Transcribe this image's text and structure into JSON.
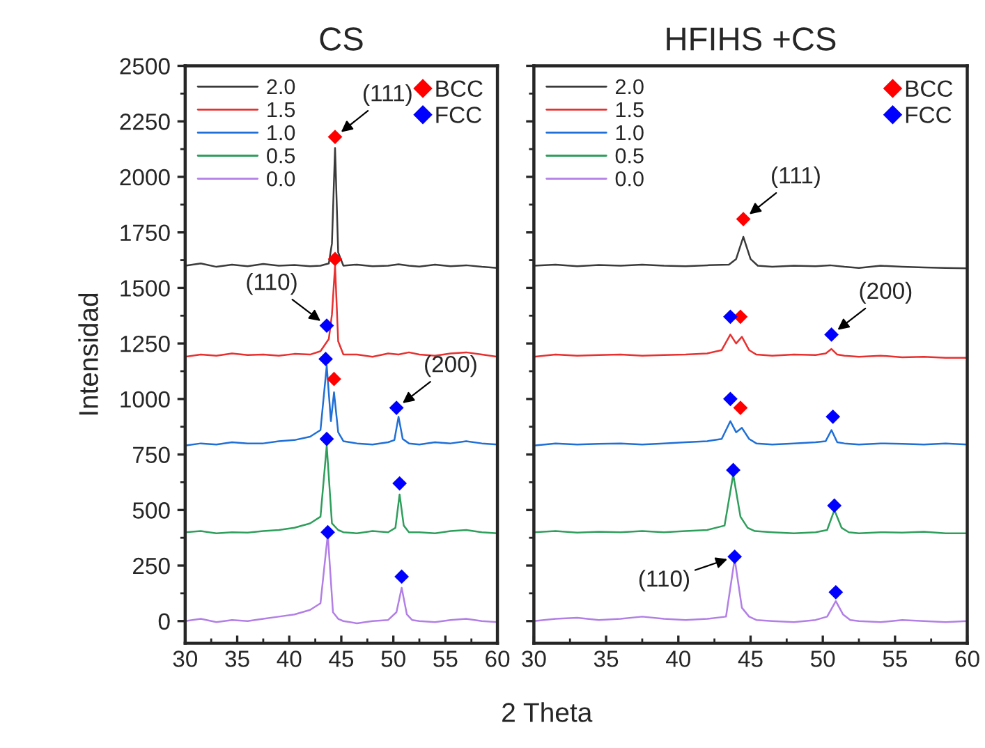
{
  "chart_data": [
    {
      "type": "line",
      "title": "CS",
      "xlabel": "2 Theta",
      "ylabel": "Intensidad",
      "xlim": [
        30,
        60
      ],
      "xticks": [
        30,
        35,
        40,
        45,
        50,
        55,
        60
      ],
      "ylim": [
        -100,
        2500
      ],
      "yticks": [
        0,
        250,
        500,
        750,
        1000,
        1250,
        1500,
        1750,
        2000,
        2250,
        2500
      ],
      "legend": "top left",
      "grid": false,
      "series": [
        {
          "name": "2.0",
          "color": "#3a3a3a",
          "x": [
            30,
            31.5,
            33,
            34.5,
            36,
            37.5,
            39,
            40.5,
            42,
            43.0,
            43.8,
            44.1,
            44.4,
            44.7,
            45.2,
            46.5,
            48,
            49.5,
            50.5,
            51.5,
            52.5,
            54,
            55.5,
            57,
            58.5,
            60
          ],
          "values": [
            1600,
            1610,
            1595,
            1605,
            1598,
            1608,
            1600,
            1603,
            1598,
            1600,
            1610,
            1700,
            2130,
            1660,
            1600,
            1605,
            1598,
            1600,
            1606,
            1600,
            1596,
            1605,
            1598,
            1602,
            1595,
            1590
          ]
        },
        {
          "name": "1.5",
          "color": "#e8302f",
          "x": [
            30,
            31.5,
            33,
            34.5,
            36,
            37.5,
            39,
            40.5,
            42,
            43.0,
            43.8,
            44.1,
            44.4,
            44.7,
            45.2,
            46.5,
            48,
            49.5,
            50.5,
            51.5,
            52.5,
            54,
            55.5,
            57,
            58.5,
            60
          ],
          "values": [
            1190,
            1200,
            1195,
            1205,
            1198,
            1200,
            1195,
            1203,
            1200,
            1215,
            1270,
            1380,
            1600,
            1260,
            1200,
            1200,
            1190,
            1205,
            1200,
            1210,
            1200,
            1195,
            1205,
            1210,
            1200,
            1190
          ]
        },
        {
          "name": "1.0",
          "color": "#1f6fd6",
          "x": [
            30,
            31.5,
            33,
            34.5,
            36,
            37.5,
            39,
            40.5,
            42,
            43.0,
            43.6,
            44.0,
            44.3,
            44.7,
            45.2,
            46.5,
            48,
            49.5,
            50.1,
            50.5,
            50.9,
            51.5,
            52.5,
            54,
            55.5,
            57,
            58.5,
            60
          ],
          "values": [
            790,
            800,
            795,
            805,
            800,
            800,
            810,
            815,
            830,
            860,
            1150,
            900,
            1030,
            850,
            810,
            800,
            795,
            805,
            815,
            920,
            820,
            800,
            795,
            805,
            800,
            810,
            800,
            795
          ]
        },
        {
          "name": "0.5",
          "color": "#2e9e5b",
          "x": [
            30,
            31.5,
            33,
            34.5,
            36,
            37.5,
            39,
            40.5,
            42,
            43.0,
            43.6,
            44.1,
            44.7,
            45.2,
            46.5,
            48,
            49.5,
            50.2,
            50.6,
            51.0,
            51.5,
            52.5,
            54,
            55.5,
            57,
            58.5,
            60
          ],
          "values": [
            400,
            405,
            395,
            400,
            398,
            405,
            410,
            420,
            440,
            470,
            790,
            440,
            410,
            400,
            395,
            405,
            400,
            420,
            570,
            430,
            400,
            400,
            395,
            405,
            410,
            400,
            395
          ]
        },
        {
          "name": "0.0",
          "color": "#b27fe6",
          "x": [
            30,
            31.5,
            33,
            34.5,
            36,
            37.5,
            39,
            40.5,
            42,
            43.0,
            43.7,
            44.2,
            44.7,
            45.2,
            46.5,
            48,
            49.5,
            50.3,
            50.8,
            51.3,
            51.8,
            52.5,
            54,
            55.5,
            57,
            58.5,
            60
          ],
          "values": [
            0,
            10,
            -5,
            5,
            0,
            10,
            20,
            30,
            50,
            80,
            390,
            40,
            10,
            0,
            -10,
            0,
            5,
            40,
            150,
            30,
            5,
            0,
            -5,
            5,
            10,
            0,
            -5
          ]
        },
        {
          "name": "BCC",
          "type": "scatter",
          "marker": "diamond",
          "color": "#ff0000",
          "x": [
            44.4,
            44.4,
            44.3
          ],
          "values": [
            2180,
            1630,
            1090
          ]
        },
        {
          "name": "FCC",
          "type": "scatter",
          "marker": "diamond",
          "color": "#0000ff",
          "x": [
            43.6,
            43.5,
            50.3,
            43.6,
            50.6,
            43.7,
            50.8
          ],
          "values": [
            1330,
            1180,
            960,
            820,
            620,
            400,
            200
          ]
        }
      ],
      "annotations": [
        {
          "text": "(111)",
          "x": 44.4,
          "y": 2180
        },
        {
          "text": "(110)",
          "x": 43.6,
          "y": 1330
        },
        {
          "text": "(200)",
          "x": 50.3,
          "y": 960
        }
      ]
    },
    {
      "type": "line",
      "title": "HFIHS +CS",
      "xlim": [
        30,
        60
      ],
      "xticks": [
        30,
        35,
        40,
        45,
        50,
        55,
        60
      ],
      "ylim": [
        -100,
        2500
      ],
      "yticks": [
        0,
        250,
        500,
        750,
        1000,
        1250,
        1500,
        1750,
        2000,
        2250,
        2500
      ],
      "tick_labels": "x",
      "legend": "top left",
      "grid": false,
      "series": [
        {
          "name": "2.0",
          "color": "#3a3a3a",
          "x": [
            30,
            31.5,
            33,
            34.5,
            36,
            37.5,
            39,
            40.5,
            42,
            43.5,
            44.0,
            44.5,
            45.0,
            45.5,
            46.5,
            48,
            49.5,
            50.5,
            51.5,
            52.5,
            54,
            55.5,
            57,
            58.5,
            60
          ],
          "values": [
            1600,
            1605,
            1598,
            1603,
            1600,
            1605,
            1600,
            1598,
            1602,
            1605,
            1630,
            1730,
            1630,
            1600,
            1595,
            1600,
            1598,
            1602,
            1595,
            1590,
            1600,
            1595,
            1592,
            1590,
            1588
          ]
        },
        {
          "name": "1.5",
          "color": "#e8302f",
          "x": [
            30,
            31.5,
            33,
            34.5,
            36,
            37.5,
            39,
            40.5,
            42,
            43.0,
            43.6,
            44.0,
            44.4,
            44.9,
            45.4,
            46.5,
            48,
            49.5,
            50.2,
            50.6,
            51.0,
            51.5,
            52.5,
            54,
            55.5,
            57,
            58.5,
            60
          ],
          "values": [
            1190,
            1200,
            1195,
            1198,
            1200,
            1195,
            1198,
            1200,
            1205,
            1220,
            1290,
            1250,
            1280,
            1220,
            1200,
            1195,
            1200,
            1198,
            1205,
            1225,
            1200,
            1195,
            1190,
            1195,
            1188,
            1190,
            1185,
            1185
          ]
        },
        {
          "name": "1.0",
          "color": "#1f6fd6",
          "x": [
            30,
            31.5,
            33,
            34.5,
            36,
            37.5,
            39,
            40.5,
            42,
            43.0,
            43.6,
            44.0,
            44.4,
            44.9,
            45.4,
            46.5,
            48,
            49.5,
            50.2,
            50.6,
            51.0,
            51.5,
            52.5,
            54,
            55.5,
            57,
            58.5,
            60
          ],
          "values": [
            790,
            800,
            795,
            798,
            800,
            795,
            800,
            805,
            810,
            820,
            900,
            850,
            870,
            820,
            800,
            795,
            800,
            805,
            810,
            860,
            805,
            800,
            795,
            800,
            798,
            795,
            800,
            795
          ]
        },
        {
          "name": "0.5",
          "color": "#2e9e5b",
          "x": [
            30,
            31.5,
            33,
            34.5,
            36,
            37.5,
            39,
            40.5,
            42,
            43.2,
            43.8,
            44.3,
            44.8,
            45.3,
            46.5,
            48,
            49.5,
            50.3,
            50.8,
            51.3,
            51.8,
            52.5,
            54,
            55.5,
            57,
            58.5,
            60
          ],
          "values": [
            400,
            405,
            398,
            402,
            400,
            405,
            400,
            405,
            410,
            430,
            660,
            470,
            420,
            405,
            400,
            395,
            400,
            410,
            500,
            420,
            400,
            395,
            400,
            398,
            402,
            395,
            395
          ]
        },
        {
          "name": "0.0",
          "color": "#b27fe6",
          "x": [
            30,
            31.5,
            33,
            34.5,
            36,
            37.5,
            39,
            40.5,
            42,
            43.3,
            43.9,
            44.4,
            44.9,
            45.4,
            46.5,
            48,
            49.5,
            50.3,
            50.9,
            51.4,
            51.9,
            52.5,
            54,
            55.5,
            57,
            58.5,
            60
          ],
          "values": [
            0,
            10,
            15,
            5,
            10,
            20,
            10,
            5,
            10,
            20,
            280,
            60,
            20,
            5,
            0,
            -5,
            5,
            20,
            90,
            30,
            5,
            0,
            -5,
            5,
            0,
            -5,
            0
          ]
        },
        {
          "name": "BCC",
          "type": "scatter",
          "marker": "diamond",
          "color": "#ff0000",
          "x": [
            44.5,
            44.3,
            44.3
          ],
          "values": [
            1810,
            1370,
            960
          ]
        },
        {
          "name": "FCC",
          "type": "scatter",
          "marker": "diamond",
          "color": "#0000ff",
          "x": [
            43.6,
            50.6,
            43.6,
            50.7,
            43.8,
            50.8,
            43.9,
            50.9
          ],
          "values": [
            1370,
            1290,
            1000,
            920,
            680,
            520,
            290,
            130
          ]
        }
      ],
      "annotations": [
        {
          "text": "(111)",
          "x": 44.5,
          "y": 1810
        },
        {
          "text": "(200)",
          "x": 50.6,
          "y": 1290
        },
        {
          "text": "(110)",
          "x": 43.9,
          "y": 290
        }
      ]
    }
  ]
}
